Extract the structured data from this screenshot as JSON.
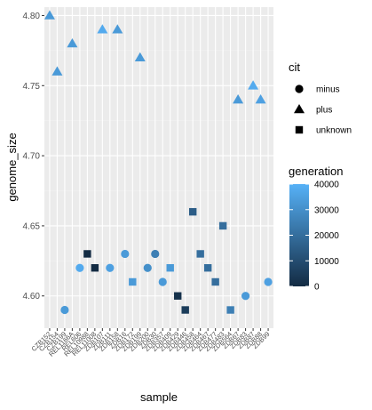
{
  "chart_data": {
    "type": "scatter",
    "title": "",
    "xlabel": "sample",
    "ylabel": "genome_size",
    "ylim": [
      4.577,
      4.806
    ],
    "y_ticks": [
      4.6,
      4.65,
      4.7,
      4.75,
      4.8
    ],
    "y_tick_labels": [
      "4.60",
      "4.65",
      "4.70",
      "4.75",
      "4.80"
    ],
    "grid": true,
    "categories": [
      "CZB152",
      "CZB154",
      "CZB199",
      "REL1166A",
      "REL606",
      "REL10988",
      "REL11008",
      "ZDB107",
      "ZDB111",
      "ZDB158",
      "ZDB16",
      "ZDB172",
      "ZDB199",
      "ZDB200",
      "ZDB30",
      "ZDB357",
      "ZDB409",
      "ZDB429",
      "ZDB446",
      "ZDB458",
      "ZDB464",
      "ZDB467",
      "ZDB477",
      "ZDB483",
      "ZDB564",
      "ZDB67",
      "ZDB83",
      "ZDB87",
      "ZDB88",
      "ZDB99"
    ],
    "x_tick_labels": [
      "CZB152",
      "CZB154",
      "CZB199",
      "REL1166A",
      "REL606",
      "REL10988",
      "REL11008",
      "ZDB107",
      "ZDB111",
      "ZDB158",
      "ZDB16",
      "ZDB172",
      "ZDB199",
      "ZDB200",
      "ZDB30",
      "ZDB357",
      "ZDB409",
      "ZDB429",
      "ZDB446",
      "ZDB458",
      "ZDB464",
      "ZDB467",
      "ZDB477",
      "ZDB483",
      "ZDB564",
      "ZDB67",
      "ZDB83",
      "ZDB87",
      "ZDB88",
      "ZDB99"
    ],
    "points": [
      {
        "sample": "CZB152",
        "genome_size": 4.8,
        "cit": "plus",
        "generation": 33000
      },
      {
        "sample": "CZB154",
        "genome_size": 4.76,
        "cit": "plus",
        "generation": 33000
      },
      {
        "sample": "CZB199",
        "genome_size": 4.59,
        "cit": "minus",
        "generation": 33000
      },
      {
        "sample": "REL1166A",
        "genome_size": 4.78,
        "cit": "plus",
        "generation": 33000
      },
      {
        "sample": "REL606",
        "genome_size": 4.62,
        "cit": "minus",
        "generation": 38000
      },
      {
        "sample": "REL10988",
        "genome_size": 4.63,
        "cit": "unknown",
        "generation": 0
      },
      {
        "sample": "REL11008",
        "genome_size": 4.62,
        "cit": "unknown",
        "generation": 0
      },
      {
        "sample": "ZDB107",
        "genome_size": 4.79,
        "cit": "plus",
        "generation": 38000
      },
      {
        "sample": "ZDB111",
        "genome_size": 4.62,
        "cit": "minus",
        "generation": 35000
      },
      {
        "sample": "ZDB158",
        "genome_size": 4.79,
        "cit": "plus",
        "generation": 33000
      },
      {
        "sample": "ZDB16",
        "genome_size": 4.63,
        "cit": "minus",
        "generation": 33000
      },
      {
        "sample": "ZDB172",
        "genome_size": 4.61,
        "cit": "unknown",
        "generation": 33000
      },
      {
        "sample": "ZDB199",
        "genome_size": 4.77,
        "cit": "plus",
        "generation": 33000
      },
      {
        "sample": "ZDB200",
        "genome_size": 4.62,
        "cit": "minus",
        "generation": 30000
      },
      {
        "sample": "ZDB30",
        "genome_size": 4.63,
        "cit": "minus",
        "generation": 25000
      },
      {
        "sample": "ZDB357",
        "genome_size": 4.61,
        "cit": "minus",
        "generation": 33000
      },
      {
        "sample": "ZDB409",
        "genome_size": 4.62,
        "cit": "unknown",
        "generation": 33000
      },
      {
        "sample": "ZDB429",
        "genome_size": 4.6,
        "cit": "unknown",
        "generation": 2000
      },
      {
        "sample": "ZDB446",
        "genome_size": 4.59,
        "cit": "unknown",
        "generation": 5000
      },
      {
        "sample": "ZDB458",
        "genome_size": 4.66,
        "cit": "unknown",
        "generation": 15000
      },
      {
        "sample": "ZDB464",
        "genome_size": 4.63,
        "cit": "unknown",
        "generation": 20000
      },
      {
        "sample": "ZDB467",
        "genome_size": 4.62,
        "cit": "unknown",
        "generation": 20000
      },
      {
        "sample": "ZDB477",
        "genome_size": 4.61,
        "cit": "unknown",
        "generation": 20000
      },
      {
        "sample": "ZDB483",
        "genome_size": 4.65,
        "cit": "unknown",
        "generation": 20000
      },
      {
        "sample": "ZDB564",
        "genome_size": 4.59,
        "cit": "unknown",
        "generation": 25000
      },
      {
        "sample": "ZDB67",
        "genome_size": 4.74,
        "cit": "plus",
        "generation": 33000
      },
      {
        "sample": "ZDB83",
        "genome_size": 4.6,
        "cit": "minus",
        "generation": 33000
      },
      {
        "sample": "ZDB87",
        "genome_size": 4.75,
        "cit": "plus",
        "generation": 38000
      },
      {
        "sample": "ZDB88",
        "genome_size": 4.74,
        "cit": "plus",
        "generation": 35000
      },
      {
        "sample": "ZDB99",
        "genome_size": 4.61,
        "cit": "minus",
        "generation": 35000
      }
    ],
    "legend_shape": {
      "title": "cit",
      "placement": "right",
      "entries": [
        {
          "label": "minus",
          "shape": "circle"
        },
        {
          "label": "plus",
          "shape": "triangle"
        },
        {
          "label": "unknown",
          "shape": "square"
        }
      ]
    },
    "legend_color": {
      "title": "generation",
      "placement": "right",
      "min": 0,
      "max": 40000,
      "ticks": [
        0,
        10000,
        20000,
        30000,
        40000
      ],
      "tick_labels": [
        "0",
        "10000",
        "20000",
        "30000",
        "40000"
      ],
      "color_low": "#132B43",
      "color_high": "#56B1F7"
    },
    "colors": {
      "panel_background": "#EBEBEB",
      "grid_major": "#FFFFFF",
      "grid_minor": "#F3F3F3"
    }
  }
}
